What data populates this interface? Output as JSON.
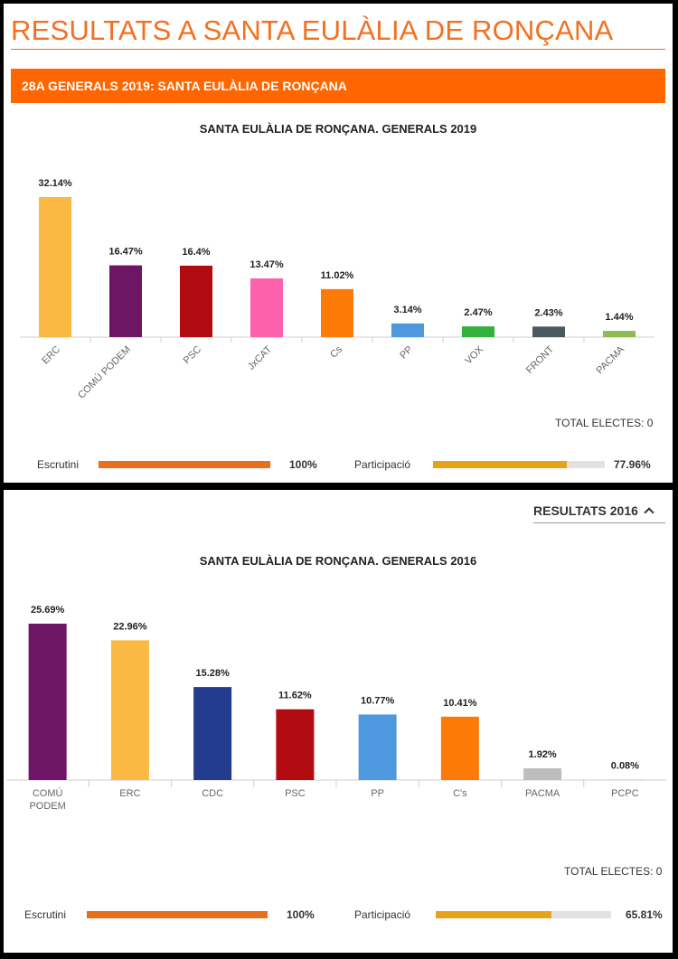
{
  "page_title": "RESULTATS A SANTA EULÀLIA DE RONÇANA",
  "section_title": "28A GENERALS 2019: SANTA EULÀLIA DE RONÇANA",
  "results_2019": {
    "total_electes": "TOTAL ELECTES: 0",
    "escrutini": {
      "label": "Escrutini",
      "value_text": "100%",
      "value": 100,
      "color": "#e8701d"
    },
    "participacio": {
      "label": "Participació",
      "value_text": "77.96%",
      "value": 77.96,
      "color": "#e6a317"
    }
  },
  "toggle_2016": {
    "label": "RESULTATS 2016"
  },
  "results_2016": {
    "total_electes": "TOTAL ELECTES: 0",
    "escrutini": {
      "label": "Escrutini",
      "value_text": "100%",
      "value": 100,
      "color": "#e8701d"
    },
    "participacio": {
      "label": "Participació",
      "value_text": "65.81%",
      "value": 65.81,
      "color": "#e6a317"
    }
  },
  "chart_data": [
    {
      "type": "bar",
      "title": "SANTA EULÀLIA DE RONÇANA. GENERALS 2019",
      "categories": [
        "ERC",
        "COMÚ PODEM",
        "PSC",
        "JxCAT",
        "Cs",
        "PP",
        "VOX",
        "FRONT",
        "PACMA"
      ],
      "values": [
        32.14,
        16.47,
        16.4,
        13.47,
        11.02,
        3.14,
        2.47,
        2.43,
        1.44
      ],
      "labels": [
        "32.14%",
        "16.47%",
        "16.4%",
        "13.47%",
        "11.02%",
        "3.14%",
        "2.47%",
        "2.43%",
        "1.44%"
      ],
      "colors": [
        "#fbb843",
        "#6e1566",
        "#b20c12",
        "#fc61ad",
        "#fc7b08",
        "#4e98e0",
        "#33b13c",
        "#4b5a5e",
        "#8cbc4f"
      ],
      "ylim": [
        0,
        32.14
      ],
      "grid": false,
      "xlabel": "",
      "ylabel": ""
    },
    {
      "type": "bar",
      "title": "SANTA EULÀLIA DE RONÇANA. GENERALS 2016",
      "categories": [
        "COMÚ PODEM",
        "ERC",
        "CDC",
        "PSC",
        "PP",
        "C's",
        "PACMA",
        "PCPC"
      ],
      "values": [
        25.69,
        22.96,
        15.28,
        11.62,
        10.77,
        10.41,
        1.92,
        0.08
      ],
      "labels": [
        "25.69%",
        "22.96%",
        "15.28%",
        "11.62%",
        "10.77%",
        "10.41%",
        "1.92%",
        "0.08%"
      ],
      "colors": [
        "#6e1566",
        "#fbb843",
        "#243c8d",
        "#b20c12",
        "#4e98e0",
        "#fc7b08",
        "#bdbdbd",
        "#bdbdbd"
      ],
      "ylim": [
        0,
        25.69
      ],
      "grid": false,
      "xlabel": "",
      "ylabel": ""
    }
  ]
}
